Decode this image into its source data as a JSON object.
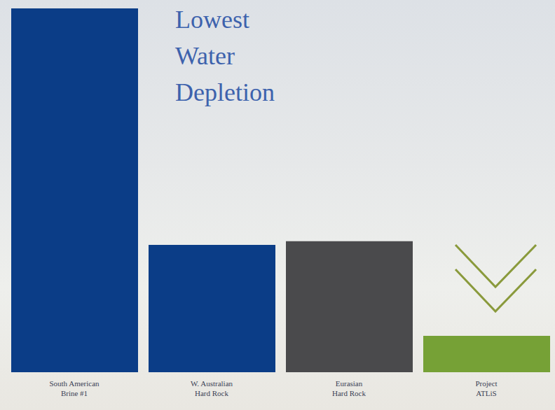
{
  "chart_data": {
    "type": "bar",
    "title": "Lowest Water Depletion",
    "categories": [
      "South American Brine #1",
      "W. Australian Hard Rock",
      "Eurasian Hard Rock",
      "Project ATLiS"
    ],
    "values": [
      100,
      35,
      36,
      10
    ],
    "colors": [
      "#0b3d87",
      "#0b3d87",
      "#4a4a4c",
      "#76a136"
    ],
    "ylim": [
      0,
      100
    ],
    "tick_labels": false,
    "grid": false
  }
}
